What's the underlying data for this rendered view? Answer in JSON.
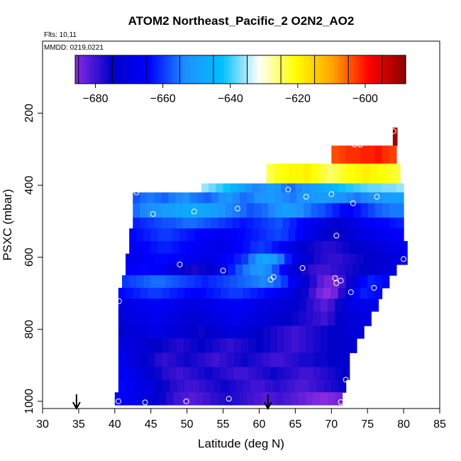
{
  "chart_data": {
    "type": "heatmap",
    "title": "ATOM2 Northeast_Pacific_2 O2N2_AO2",
    "flights_label": "Flts: 10,11",
    "dates_label": "MMDD: 0219,0221",
    "xlabel": "Latitude (deg N)",
    "ylabel": "PSXC (mbar)",
    "xlim": [
      30,
      85
    ],
    "ylim": [
      1020,
      0
    ],
    "x_ticks": [
      30,
      35,
      40,
      45,
      50,
      55,
      60,
      65,
      70,
      75,
      80,
      85
    ],
    "y_ticks": [
      200,
      400,
      600,
      800,
      1000
    ],
    "grid": false,
    "colorbar": {
      "range": [
        -686,
        -588
      ],
      "ticks": [
        -680,
        -660,
        -640,
        -620,
        -600
      ],
      "colors": [
        "#8a2be2",
        "#0000c8",
        "#0000ff",
        "#1e90ff",
        "#00bfff",
        "#ffffff",
        "#ffff00",
        "#ffa500",
        "#ff0000",
        "#8b0000"
      ]
    },
    "bands": [
      {
        "p_top": 240,
        "p_bot": 290,
        "lat_start": 78.5,
        "lat_end": 79.1,
        "values": [
          -590
        ]
      },
      {
        "p_top": 290,
        "p_bot": 340,
        "lat_start": 70,
        "lat_end": 79,
        "values": [
          -604,
          -603,
          -602,
          -602,
          -601,
          -601,
          -600,
          -602,
          -603
        ]
      },
      {
        "p_top": 340,
        "p_bot": 395,
        "lat_start": 61,
        "lat_end": 79.5,
        "values": [
          -624,
          -622,
          -621,
          -620,
          -620,
          -619,
          -621,
          -623,
          -625,
          -624,
          -622,
          -621,
          -620,
          -619,
          -620,
          -621,
          -622,
          -623
        ]
      },
      {
        "p_top": 395,
        "p_bot": 420,
        "lat_start": 52,
        "lat_end": 80,
        "values": [
          -636,
          -638,
          -640,
          -642,
          -645,
          -648,
          -652,
          -654,
          -653,
          -650,
          -652,
          -655,
          -656,
          -654,
          -652,
          -650,
          -648,
          -646,
          -644,
          -642,
          -641,
          -640,
          -639,
          -638,
          -638,
          -637,
          -637,
          -636
        ]
      },
      {
        "p_top": 420,
        "p_bot": 450,
        "lat_start": 42.5,
        "lat_end": 80,
        "values": [
          -658,
          -656,
          -655,
          -656,
          -657,
          -655,
          -654,
          -653,
          -655,
          -656,
          -657,
          -655,
          -653,
          -652,
          -654,
          -656,
          -655,
          -653,
          -652,
          -651,
          -653,
          -654,
          -655,
          -653,
          -652,
          -651,
          -650,
          -651,
          -652,
          -653,
          -654,
          -655,
          -654,
          -653,
          -652,
          -651,
          -650,
          -650
        ]
      },
      {
        "p_top": 450,
        "p_bot": 490,
        "lat_start": 42.5,
        "lat_end": 80,
        "values": [
          -656,
          -654,
          -653,
          -652,
          -651,
          -650,
          -649,
          -648,
          -647,
          -648,
          -649,
          -650,
          -652,
          -654,
          -655,
          -656,
          -658,
          -657,
          -656,
          -654,
          -652,
          -650,
          -651,
          -653,
          -655,
          -657,
          -658,
          -660,
          -662,
          -664,
          -665,
          -663,
          -661,
          -659,
          -657,
          -656,
          -655,
          -655
        ]
      },
      {
        "p_top": 490,
        "p_bot": 520,
        "lat_start": 42.5,
        "lat_end": 80,
        "values": [
          -662,
          -661,
          -660,
          -659,
          -658,
          -658,
          -657,
          -656,
          -656,
          -657,
          -658,
          -659,
          -660,
          -661,
          -662,
          -663,
          -662,
          -661,
          -660,
          -659,
          -658,
          -660,
          -662,
          -664,
          -666,
          -668,
          -670,
          -672,
          -674,
          -673,
          -671,
          -669,
          -667,
          -666,
          -665,
          -664,
          -663,
          -662
        ]
      },
      {
        "p_top": 520,
        "p_bot": 555,
        "lat_start": 42,
        "lat_end": 80,
        "values": [
          -664,
          -663,
          -662,
          -661,
          -660,
          -660,
          -661,
          -662,
          -663,
          -664,
          -665,
          -666,
          -667,
          -666,
          -665,
          -664,
          -663,
          -662,
          -661,
          -660,
          -659,
          -660,
          -662,
          -664,
          -667,
          -670,
          -672,
          -674,
          -676,
          -675,
          -673,
          -671,
          -670,
          -669,
          -668,
          -667,
          -666,
          -665
        ]
      },
      {
        "p_top": 555,
        "p_bot": 590,
        "lat_start": 42,
        "lat_end": 80.5,
        "values": [
          -666,
          -665,
          -664,
          -663,
          -662,
          -662,
          -663,
          -664,
          -665,
          -666,
          -667,
          -668,
          -669,
          -668,
          -667,
          -665,
          -663,
          -661,
          -660,
          -661,
          -663,
          -666,
          -669,
          -672,
          -674,
          -676,
          -677,
          -678,
          -678,
          -677,
          -676,
          -675,
          -674,
          -673,
          -672,
          -671,
          -670,
          -669,
          -668
        ]
      },
      {
        "p_top": 590,
        "p_bot": 620,
        "lat_start": 41.5,
        "lat_end": 80.5,
        "values": [
          -668,
          -667,
          -666,
          -665,
          -664,
          -664,
          -665,
          -666,
          -667,
          -668,
          -669,
          -670,
          -668,
          -666,
          -664,
          -662,
          -660,
          -655,
          -650,
          -648,
          -650,
          -655,
          -662,
          -668,
          -672,
          -675,
          -677,
          -678,
          -679,
          -679,
          -678,
          -677,
          -676,
          -675,
          -674,
          -673,
          -672,
          -671,
          -670
        ]
      },
      {
        "p_top": 620,
        "p_bot": 650,
        "lat_start": 41.5,
        "lat_end": 79,
        "values": [
          -666,
          -665,
          -664,
          -665,
          -666,
          -668,
          -671,
          -674,
          -676,
          -677,
          -676,
          -674,
          -670,
          -666,
          -662,
          -658,
          -655,
          -653,
          -652,
          -654,
          -658,
          -664,
          -670,
          -674,
          -677,
          -679,
          -680,
          -680,
          -679,
          -678,
          -677,
          -676,
          -675,
          -674,
          -673,
          -672,
          -671
        ]
      },
      {
        "p_top": 650,
        "p_bot": 685,
        "lat_start": 41,
        "lat_end": 78,
        "values": [
          -660,
          -659,
          -658,
          -657,
          -656,
          -656,
          -657,
          -658,
          -659,
          -660,
          -661,
          -662,
          -661,
          -660,
          -659,
          -658,
          -657,
          -656,
          -655,
          -654,
          -655,
          -657,
          -660,
          -665,
          -670,
          -674,
          -678,
          -682,
          -684,
          -684,
          -680,
          -676,
          -670,
          -664,
          -662,
          -663,
          -664
        ]
      },
      {
        "p_top": 685,
        "p_bot": 715,
        "lat_start": 40.5,
        "lat_end": 77,
        "values": [
          -664,
          -663,
          -662,
          -661,
          -660,
          -660,
          -661,
          -662,
          -663,
          -664,
          -665,
          -664,
          -663,
          -662,
          -661,
          -660,
          -660,
          -661,
          -662,
          -663,
          -664,
          -666,
          -668,
          -670,
          -673,
          -676,
          -680,
          -684,
          -686,
          -684,
          -678,
          -670,
          -664,
          -662,
          -663,
          -664
        ]
      },
      {
        "p_top": 715,
        "p_bot": 750,
        "lat_start": 40.5,
        "lat_end": 76.5,
        "values": [
          -670,
          -669,
          -668,
          -667,
          -666,
          -666,
          -667,
          -668,
          -669,
          -670,
          -671,
          -670,
          -669,
          -668,
          -667,
          -666,
          -666,
          -667,
          -668,
          -669,
          -670,
          -671,
          -672,
          -673,
          -674,
          -676,
          -678,
          -680,
          -682,
          -680,
          -676,
          -672,
          -670,
          -669,
          -668,
          -668
        ]
      },
      {
        "p_top": 750,
        "p_bot": 790,
        "lat_start": 40.5,
        "lat_end": 75.5,
        "values": [
          -672,
          -671,
          -670,
          -669,
          -668,
          -668,
          -669,
          -670,
          -671,
          -672,
          -673,
          -672,
          -671,
          -670,
          -669,
          -668,
          -668,
          -669,
          -670,
          -671,
          -672,
          -673,
          -674,
          -675,
          -676,
          -677,
          -678,
          -679,
          -680,
          -678,
          -675,
          -673,
          -672,
          -671,
          -670
        ]
      },
      {
        "p_top": 790,
        "p_bot": 825,
        "lat_start": 40.5,
        "lat_end": 74.5,
        "values": [
          -674,
          -673,
          -672,
          -671,
          -670,
          -670,
          -671,
          -672,
          -673,
          -674,
          -675,
          -676,
          -675,
          -674,
          -673,
          -672,
          -672,
          -673,
          -674,
          -675,
          -676,
          -677,
          -678,
          -679,
          -680,
          -679,
          -678,
          -677,
          -676,
          -675,
          -674,
          -673,
          -672,
          -672
        ]
      },
      {
        "p_top": 825,
        "p_bot": 865,
        "lat_start": 40.5,
        "lat_end": 73.5,
        "values": [
          -670,
          -671,
          -672,
          -673,
          -674,
          -675,
          -676,
          -677,
          -678,
          -677,
          -676,
          -675,
          -676,
          -677,
          -678,
          -679,
          -678,
          -677,
          -676,
          -675,
          -676,
          -677,
          -678,
          -679,
          -680,
          -679,
          -678,
          -677,
          -676,
          -675,
          -675,
          -674,
          -674
        ]
      },
      {
        "p_top": 865,
        "p_bot": 905,
        "lat_start": 40.5,
        "lat_end": 72.5,
        "values": [
          -668,
          -670,
          -672,
          -674,
          -676,
          -678,
          -679,
          -678,
          -677,
          -676,
          -677,
          -678,
          -679,
          -680,
          -679,
          -678,
          -677,
          -676,
          -677,
          -678,
          -679,
          -680,
          -680,
          -679,
          -678,
          -677,
          -677,
          -676,
          -676,
          -675,
          -675,
          -674
        ]
      },
      {
        "p_top": 905,
        "p_bot": 940,
        "lat_start": 40.5,
        "lat_end": 72.5,
        "values": [
          -666,
          -668,
          -670,
          -672,
          -674,
          -676,
          -678,
          -679,
          -680,
          -679,
          -678,
          -677,
          -676,
          -677,
          -678,
          -679,
          -680,
          -680,
          -679,
          -678,
          -677,
          -676,
          -677,
          -678,
          -679,
          -680,
          -680,
          -679,
          -678,
          -677,
          -676,
          -675
        ]
      },
      {
        "p_top": 940,
        "p_bot": 975,
        "lat_start": 40.5,
        "lat_end": 72,
        "values": [
          -664,
          -666,
          -668,
          -670,
          -672,
          -674,
          -676,
          -678,
          -679,
          -680,
          -680,
          -679,
          -678,
          -677,
          -676,
          -677,
          -678,
          -679,
          -680,
          -680,
          -679,
          -678,
          -679,
          -680,
          -681,
          -681,
          -680,
          -679,
          -678,
          -677,
          -676
        ]
      },
      {
        "p_top": 975,
        "p_bot": 1010,
        "lat_start": 40,
        "lat_end": 71.5,
        "values": [
          -664,
          -666,
          -668,
          -670,
          -672,
          -674,
          -676,
          -678,
          -680,
          -681,
          -682,
          -681,
          -680,
          -679,
          -678,
          -677,
          -678,
          -679,
          -680,
          -681,
          -682,
          -681,
          -680,
          -681,
          -682,
          -683,
          -684,
          -685,
          -686,
          -685,
          -684
        ]
      }
    ],
    "samples": [
      {
        "lat": 78.6,
        "p": 250
      },
      {
        "lat": 73.2,
        "p": 287
      },
      {
        "lat": 74.0,
        "p": 287
      },
      {
        "lat": 64.0,
        "p": 412
      },
      {
        "lat": 66.5,
        "p": 432
      },
      {
        "lat": 70.0,
        "p": 425
      },
      {
        "lat": 76.3,
        "p": 432
      },
      {
        "lat": 43.0,
        "p": 420
      },
      {
        "lat": 73.0,
        "p": 450
      },
      {
        "lat": 57.0,
        "p": 465
      },
      {
        "lat": 51.0,
        "p": 473
      },
      {
        "lat": 45.3,
        "p": 480
      },
      {
        "lat": 70.7,
        "p": 540
      },
      {
        "lat": 80.0,
        "p": 605
      },
      {
        "lat": 49.0,
        "p": 620
      },
      {
        "lat": 55.0,
        "p": 637
      },
      {
        "lat": 66.0,
        "p": 630
      },
      {
        "lat": 62.0,
        "p": 655
      },
      {
        "lat": 61.6,
        "p": 662
      },
      {
        "lat": 70.5,
        "p": 658
      },
      {
        "lat": 70.7,
        "p": 672
      },
      {
        "lat": 71.3,
        "p": 665
      },
      {
        "lat": 75.9,
        "p": 685
      },
      {
        "lat": 72.7,
        "p": 697
      },
      {
        "lat": 40.6,
        "p": 722
      },
      {
        "lat": 72.0,
        "p": 940
      },
      {
        "lat": 40.5,
        "p": 1000
      },
      {
        "lat": 44.2,
        "p": 1003
      },
      {
        "lat": 49.9,
        "p": 1000
      },
      {
        "lat": 55.8,
        "p": 993
      },
      {
        "lat": 71.3,
        "p": 1002
      }
    ],
    "arrows": [
      34.7,
      61.2
    ]
  }
}
